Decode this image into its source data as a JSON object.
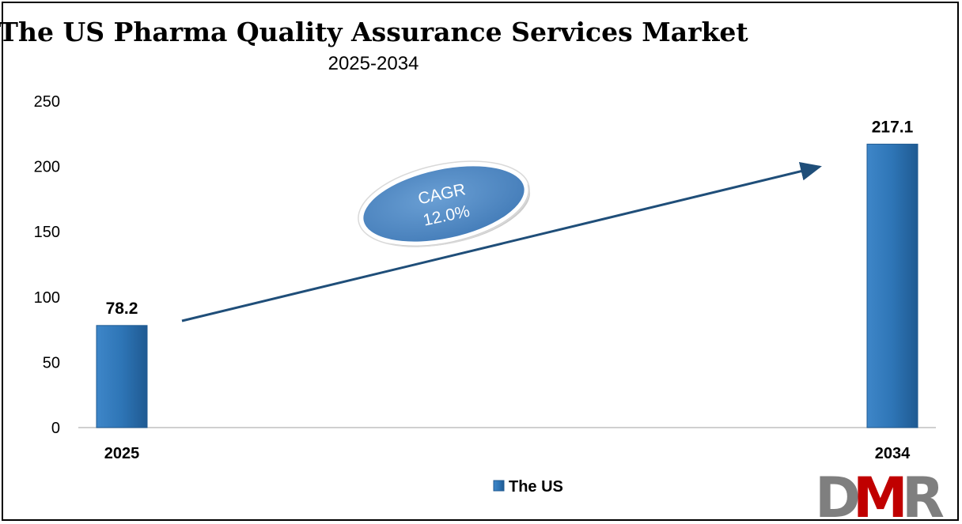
{
  "chart_data": {
    "type": "bar",
    "title": "The US Pharma Quality Assurance Services Market",
    "subtitle": "2025-2034",
    "categories": [
      "2025",
      "2034"
    ],
    "series": [
      {
        "name": "The US",
        "values": [
          78.2,
          217.1
        ],
        "labels": [
          "78.2",
          "217.1"
        ]
      }
    ],
    "ylim": [
      0,
      250
    ],
    "yticks": [
      "0",
      "50",
      "100",
      "150",
      "200",
      "250"
    ],
    "grid": false,
    "legend": "bottom-center",
    "bar_color": "#2e75b6",
    "annotation": {
      "line1": "CAGR",
      "line2": "12.0%"
    }
  },
  "logo": {
    "text": "DMR",
    "colors": [
      "#7f7f7f",
      "#c00000"
    ]
  }
}
